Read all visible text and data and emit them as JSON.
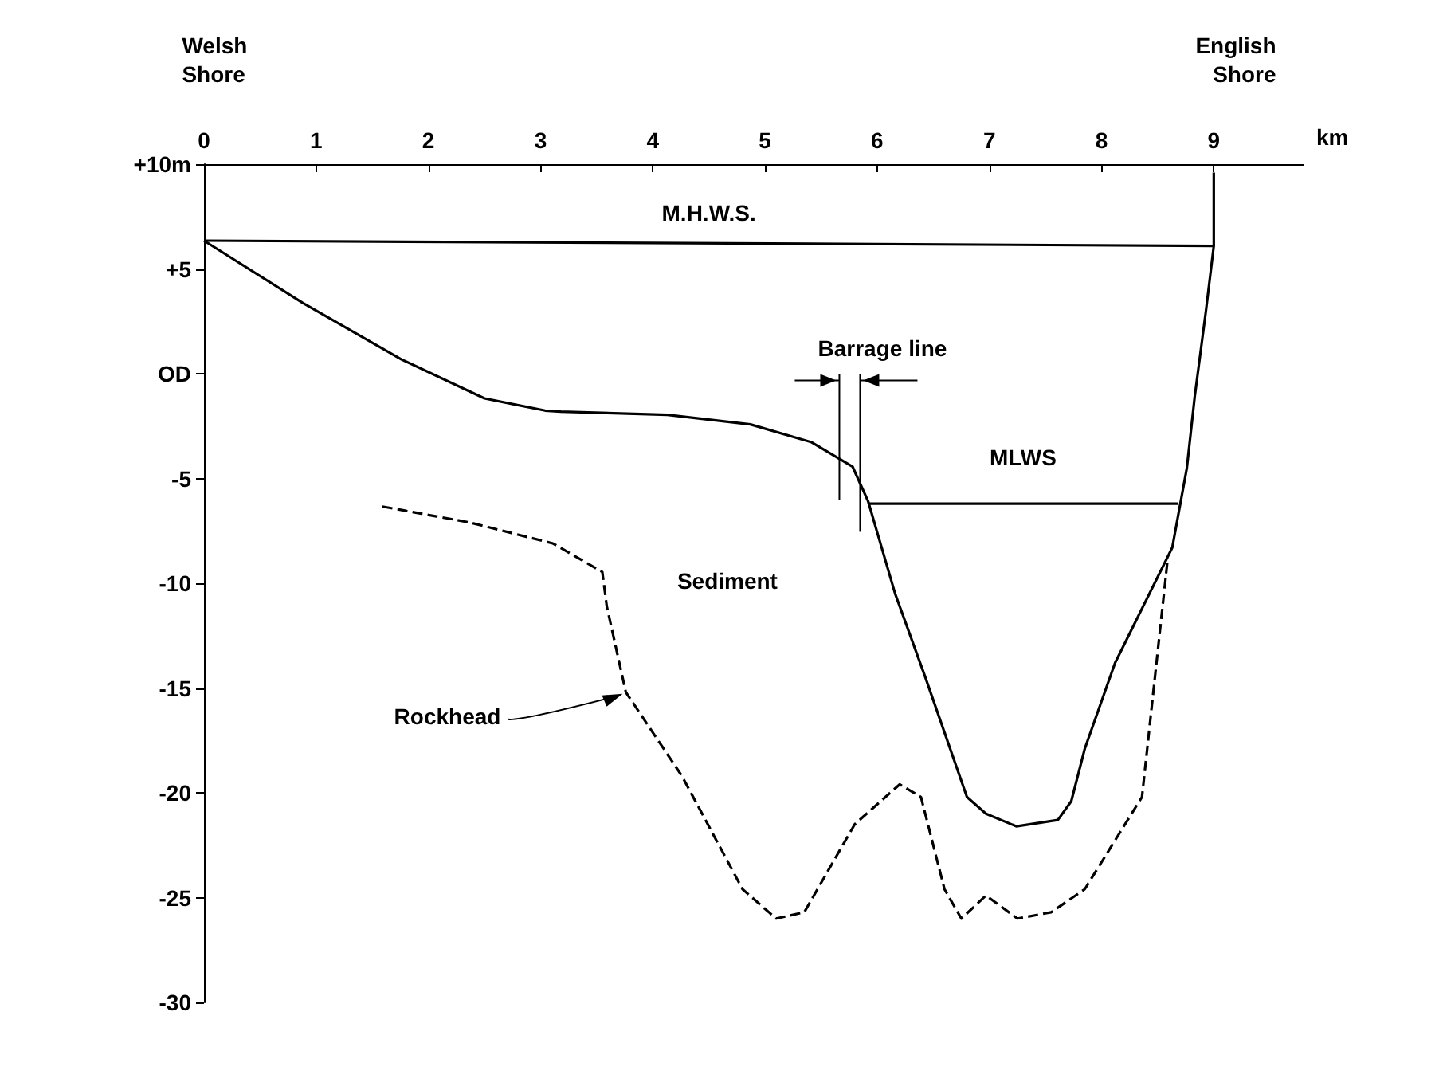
{
  "chart_data": {
    "type": "line",
    "xlabel": "km",
    "xlim": [
      0,
      9.8
    ],
    "xticks": [
      0,
      1,
      2,
      3,
      4,
      5,
      6,
      7,
      8,
      9
    ],
    "ylim": [
      -30,
      10
    ],
    "yticks": [
      {
        "value": 10,
        "label": "+10m"
      },
      {
        "value": 5,
        "label": "+5"
      },
      {
        "value": 0,
        "label": "OD"
      },
      -5,
      -10,
      -15,
      -20,
      -25,
      -30
    ],
    "grid": false,
    "marker": "none",
    "series": [
      {
        "color": "#000000",
        "line_style": "solid",
        "x": [
          0,
          0.88,
          1.76,
          2.5,
          3.04,
          3.18,
          4.13,
          4.87,
          5.41,
          5.78,
          5.92,
          6.16,
          6.43,
          6.8,
          6.97,
          7.24,
          7.61,
          7.73,
          7.85,
          8.12,
          8.63,
          8.76,
          8.83,
          8.93,
          9,
          9
        ],
        "values": [
          6.35,
          3.38,
          0.68,
          -1.18,
          -1.76,
          -1.81,
          -1.96,
          -2.42,
          -3.26,
          -4.43,
          -6.1,
          -10.5,
          -14.5,
          -20.2,
          -21,
          -21.6,
          -21.3,
          -20.4,
          -17.9,
          -13.8,
          -8.3,
          -4.5,
          -1.1,
          3,
          6.1,
          9.6
        ]
      },
      {
        "color": "#000000",
        "line_style": "dashed",
        "x": [
          1.59,
          2.37,
          3.11,
          3.55,
          3.59,
          3.76,
          4.26,
          4.8,
          5.1,
          5.35,
          5.8,
          6.2,
          6.39,
          6.6,
          6.75,
          6.97,
          7.25,
          7.55,
          7.85,
          8.36,
          8.59
        ],
        "values": [
          -6.34,
          -7.1,
          -8.1,
          -9.46,
          -11.1,
          -15.2,
          -19.2,
          -24.6,
          -26,
          -25.7,
          -21.5,
          -19.6,
          -20.2,
          -24.6,
          -26,
          -24.9,
          -26,
          -25.7,
          -24.6,
          -20.2,
          -8.8
        ]
      },
      {
        "name": "M.H.W.S.",
        "color": "#000000",
        "line_style": "solid",
        "x": [
          0,
          9
        ],
        "values": [
          6.35,
          6.1
        ]
      },
      {
        "name": "MLWS",
        "color": "#000000",
        "line_style": "solid",
        "x": [
          5.92,
          8.68
        ],
        "values": [
          -6.2,
          -6.2
        ]
      }
    ],
    "annotations": [
      "Welsh\nShore",
      "English\nShore",
      "Barrage line",
      "Sediment",
      {
        "text": "Rockhead",
        "x": 3.76,
        "y": -15.2
      }
    ]
  }
}
